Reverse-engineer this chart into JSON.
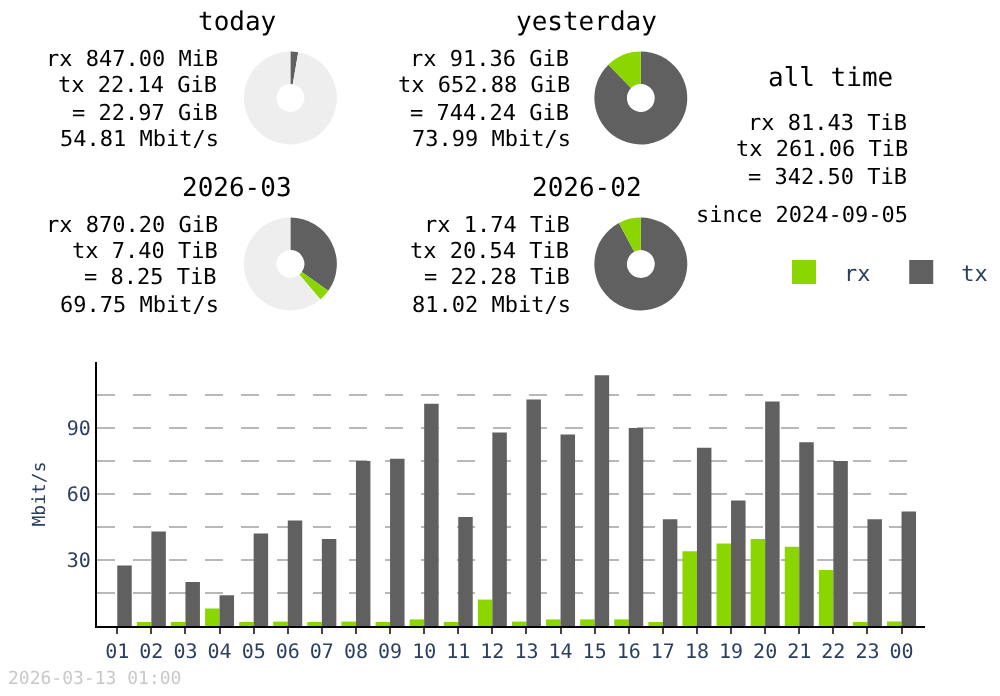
{
  "chart_data": [
    {
      "type": "donut",
      "title": "today",
      "categories": [
        null,
        null,
        null
      ],
      "values": [
        2.7,
        null,
        97.3
      ],
      "colors": [
        "#606060",
        "#8cd600",
        "#eeeeee"
      ],
      "annotations": [
        "rx 847.00 MiB",
        "tx 22.14 GiB",
        "= 22.97 GiB",
        "54.81 Mbit/s"
      ]
    },
    {
      "type": "donut",
      "title": "yesterday",
      "categories": [
        null,
        null,
        null
      ],
      "values": [
        87.7,
        12.3,
        0
      ],
      "colors": [
        "#606060",
        "#8cd600",
        "#eeeeee"
      ],
      "annotations": [
        "rx 91.36 GiB",
        "tx 652.88 GiB",
        "= 744.24 GiB",
        "73.99 Mbit/s"
      ]
    },
    {
      "type": "donut",
      "title": "2026-03",
      "categories": [
        null,
        null,
        null
      ],
      "values": [
        34.8,
        4.0,
        61.2
      ],
      "colors": [
        "#606060",
        "#8cd600",
        "#eeeeee"
      ],
      "annotations": [
        "rx 870.20 GiB",
        "tx 7.40 TiB",
        "= 8.25 TiB",
        "69.75 Mbit/s"
      ]
    },
    {
      "type": "donut",
      "title": "2026-02",
      "categories": [
        null,
        null,
        null
      ],
      "values": [
        92.2,
        7.8,
        0
      ],
      "colors": [
        "#606060",
        "#8cd600",
        "#eeeeee"
      ],
      "annotations": [
        "rx 1.74 TiB",
        "tx 20.54 TiB",
        "= 22.28 TiB",
        "81.02 Mbit/s"
      ]
    },
    {
      "type": "other",
      "title": "all time",
      "annotations": [
        "rx 81.43 TiB",
        "tx 261.06 TiB",
        "= 342.50 TiB",
        "since 2024-09-05"
      ]
    },
    {
      "type": "bar",
      "ylabel": "Mbit/s",
      "categories": [
        "01",
        "02",
        "03",
        "04",
        "05",
        "06",
        "07",
        "08",
        "09",
        "10",
        "11",
        "12",
        "13",
        "14",
        "15",
        "16",
        "17",
        "18",
        "19",
        "20",
        "21",
        "22",
        "23",
        "00"
      ],
      "series": [
        {
          "name": "rx",
          "color": "#8cd600",
          "values": [
            0,
            1,
            1,
            8,
            1,
            2,
            1,
            2,
            1,
            3,
            1,
            12,
            2,
            3,
            3,
            3,
            1,
            34,
            37.5,
            39.5,
            36,
            25.5,
            1,
            2
          ]
        },
        {
          "name": "tx",
          "color": "#606060",
          "values": [
            27.5,
            43,
            20,
            14,
            42,
            48,
            39.5,
            75,
            76,
            101,
            49.5,
            88,
            103,
            87,
            114,
            90,
            48.5,
            81,
            57,
            102,
            83.5,
            75,
            48.5,
            52
          ]
        }
      ],
      "ylim": [
        0,
        120
      ],
      "yticks": [
        {
          "value": 0,
          "label": null
        },
        {
          "value": 15,
          "label": null
        },
        30,
        {
          "value": 45,
          "label": null
        },
        60,
        {
          "value": 75,
          "label": null
        },
        90,
        {
          "value": 105,
          "label": null
        }
      ],
      "grid": "y",
      "legend": "top right",
      "annotations": [
        "2026-03-13 01:00"
      ]
    }
  ]
}
